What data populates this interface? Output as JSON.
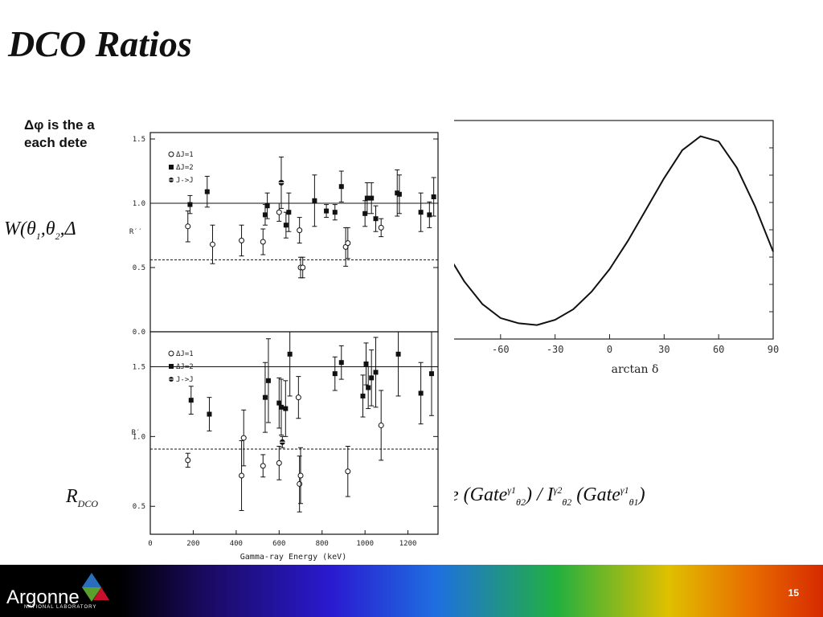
{
  "slide": {
    "title": "DCO Ratios",
    "bullet_line1": "Δφ is the a",
    "bullet_line2": "each dete",
    "page_number": "15"
  },
  "footer": {
    "logo_text": "Argonne",
    "logo_sub": "NATIONAL LABORATORY",
    "colors": {
      "logo_blue": "#2a6ebb",
      "logo_green": "#5aa02c",
      "logo_red": "#c8102e"
    }
  },
  "equations": {
    "w": {
      "base": "W",
      "open": "(",
      "t1": "θ",
      "s1": "1",
      "comma1": ",",
      "t2": "θ",
      "s2": "2",
      "comma2": ",",
      "delta": "Δ"
    },
    "r_left": {
      "base": "R",
      "sub": "DCO"
    },
    "r_right": {
      "frac_char": "e",
      "open1": "(",
      "gate1": "Gate",
      "gate1_sup": "γ1",
      "gate1_sub": "θ2",
      "close1": ")",
      "slash": "/",
      "i": "I",
      "i_sup": "γ2",
      "i_sub": "θ2",
      "open2": "(",
      "gate2": "Gate",
      "gate2_sup": "γ1",
      "gate2_sub": "θ1",
      "close2": ")"
    }
  },
  "chart_data": [
    {
      "type": "line",
      "xlabel": "arctan δ",
      "xticks": [
        -60,
        -30,
        0,
        30,
        60,
        90
      ],
      "ylim": [
        0.3,
        1.55
      ],
      "xlim": [
        -90,
        90
      ],
      "series": [
        {
          "x": [
            -90,
            -80,
            -70,
            -60,
            -50,
            -40,
            -30,
            -20,
            -10,
            0,
            10,
            20,
            30,
            40,
            50,
            60,
            70,
            80,
            90
          ],
          "values": [
            0.8,
            0.63,
            0.5,
            0.42,
            0.39,
            0.38,
            0.41,
            0.47,
            0.57,
            0.7,
            0.86,
            1.04,
            1.22,
            1.38,
            1.46,
            1.43,
            1.28,
            1.06,
            0.8
          ]
        }
      ]
    },
    {
      "type": "scatter",
      "panel": "top",
      "ylabel": "R′′",
      "ylim": [
        0.0,
        1.55
      ],
      "xlim": [
        0,
        1340
      ],
      "yticks": [
        "1.5",
        "1.0",
        "0.5",
        "0.0"
      ],
      "legend": [
        "ΔJ=1",
        "ΔJ=2",
        "J->J"
      ],
      "reference_lines": {
        "solid": 1.0,
        "dashed": 0.56
      },
      "series": [
        {
          "name": "ΔJ=1",
          "x": [
            175,
            290,
            425,
            525,
            600,
            695,
            700,
            710,
            910,
            920,
            1075
          ],
          "values": [
            0.82,
            0.68,
            0.71,
            0.7,
            0.93,
            0.79,
            0.5,
            0.5,
            0.66,
            0.69,
            0.81
          ],
          "err": [
            0.12,
            0.15,
            0.12,
            0.1,
            0.07,
            0.1,
            0.08,
            0.08,
            0.15,
            0.12,
            0.07
          ]
        },
        {
          "name": "ΔJ=2",
          "x": [
            185,
            265,
            535,
            545,
            632,
            645,
            765,
            820,
            860,
            890,
            1000,
            1010,
            1030,
            1050,
            1150,
            1160,
            1260,
            1300,
            1320
          ],
          "values": [
            0.99,
            1.09,
            0.91,
            0.98,
            0.83,
            0.93,
            1.02,
            0.94,
            0.93,
            1.13,
            0.92,
            1.04,
            1.04,
            0.88,
            1.08,
            1.07,
            0.93,
            0.91,
            1.05
          ],
          "err": [
            0.07,
            0.12,
            0.08,
            0.1,
            0.1,
            0.15,
            0.2,
            0.05,
            0.06,
            0.12,
            0.1,
            0.12,
            0.12,
            0.1,
            0.18,
            0.15,
            0.15,
            0.1,
            0.15
          ]
        },
        {
          "name": "J->J",
          "x": [
            610
          ],
          "values": [
            1.16
          ],
          "err": [
            0.2
          ]
        }
      ]
    },
    {
      "type": "scatter",
      "panel": "bottom",
      "ylabel": "R′",
      "xlabel": "Gamma-ray Energy (keV)",
      "ylim": [
        0.3,
        1.75
      ],
      "xlim": [
        0,
        1340
      ],
      "xticks": [
        0,
        200,
        400,
        600,
        800,
        1000,
        1200
      ],
      "yticks": [
        "1.5",
        "1.0",
        "0.5"
      ],
      "legend": [
        "ΔJ=1",
        "ΔJ=2",
        "J->J"
      ],
      "reference_lines": {
        "solid": 1.5,
        "dashed": 0.91
      },
      "series": [
        {
          "name": "ΔJ=1",
          "x": [
            175,
            425,
            435,
            525,
            600,
            690,
            695,
            700,
            920,
            1075
          ],
          "values": [
            0.83,
            0.72,
            0.99,
            0.79,
            0.81,
            1.28,
            0.66,
            0.72,
            0.75,
            1.08
          ],
          "err": [
            0.05,
            0.25,
            0.2,
            0.08,
            0.12,
            0.15,
            0.2,
            0.2,
            0.18,
            0.25
          ],
          "ymin_clip": 0.3
        },
        {
          "name": "ΔJ=2",
          "x": [
            190,
            275,
            535,
            550,
            600,
            610,
            630,
            650,
            860,
            890,
            990,
            1005,
            1015,
            1030,
            1050,
            1155,
            1260,
            1310
          ],
          "values": [
            1.26,
            1.16,
            1.28,
            1.4,
            1.24,
            1.21,
            1.2,
            1.59,
            1.45,
            1.53,
            1.29,
            1.52,
            1.35,
            1.42,
            1.46,
            1.59,
            1.31,
            1.45
          ],
          "err": [
            0.1,
            0.12,
            0.25,
            0.3,
            0.18,
            0.2,
            0.2,
            0.3,
            0.12,
            0.12,
            0.15,
            0.15,
            0.15,
            0.2,
            0.25,
            0.3,
            0.22,
            0.3
          ]
        },
        {
          "name": "J->J",
          "x": [
            615
          ],
          "values": [
            0.96
          ],
          "err": [
            0.04
          ]
        }
      ]
    }
  ]
}
